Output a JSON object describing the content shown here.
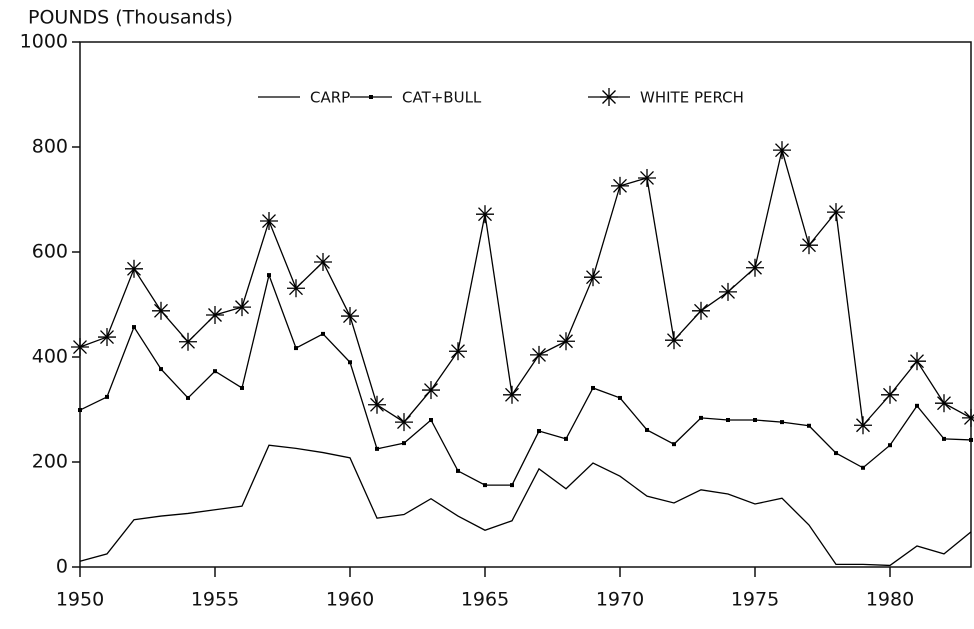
{
  "chart_data": {
    "type": "line",
    "ylabel": "POUNDS (Thousands)",
    "x": [
      1950,
      1951,
      1952,
      1953,
      1954,
      1955,
      1956,
      1957,
      1958,
      1959,
      1960,
      1961,
      1962,
      1963,
      1964,
      1965,
      1966,
      1967,
      1968,
      1969,
      1970,
      1971,
      1972,
      1973,
      1974,
      1975,
      1976,
      1977,
      1978,
      1979,
      1980,
      1981,
      1982,
      1983
    ],
    "series": [
      {
        "name": "CARP",
        "color": "#000000",
        "marker": "none",
        "values": [
          11,
          25,
          90,
          97,
          102,
          109,
          116,
          232,
          226,
          218,
          208,
          93,
          100,
          130,
          97,
          70,
          88,
          187,
          149,
          198,
          173,
          135,
          122,
          147,
          139,
          120,
          131,
          80,
          5,
          5,
          3,
          40,
          25,
          67
        ]
      },
      {
        "name": "CAT+BULL",
        "color": "#000000",
        "marker": "square",
        "values": [
          299,
          324,
          457,
          377,
          322,
          373,
          341,
          556,
          417,
          444,
          390,
          225,
          236,
          280,
          183,
          156,
          156,
          259,
          244,
          341,
          322,
          261,
          234,
          284,
          280,
          280,
          276,
          269,
          217,
          189,
          232,
          307,
          244,
          242
        ]
      },
      {
        "name": "WHITE PERCH",
        "color": "#000000",
        "marker": "asterisk",
        "values": [
          419,
          438,
          568,
          488,
          429,
          480,
          495,
          659,
          531,
          581,
          478,
          309,
          276,
          337,
          411,
          672,
          328,
          404,
          430,
          552,
          726,
          741,
          432,
          488,
          524,
          570,
          794,
          613,
          676,
          270,
          328,
          392,
          312,
          284
        ]
      }
    ],
    "xlim": [
      1950,
      1983
    ],
    "xticks": [
      1950,
      1955,
      1960,
      1965,
      1970,
      1975,
      1980
    ],
    "ylim": [
      0,
      1000
    ],
    "yticks": [
      0,
      200,
      400,
      600,
      800,
      1000
    ],
    "legend": "top"
  }
}
